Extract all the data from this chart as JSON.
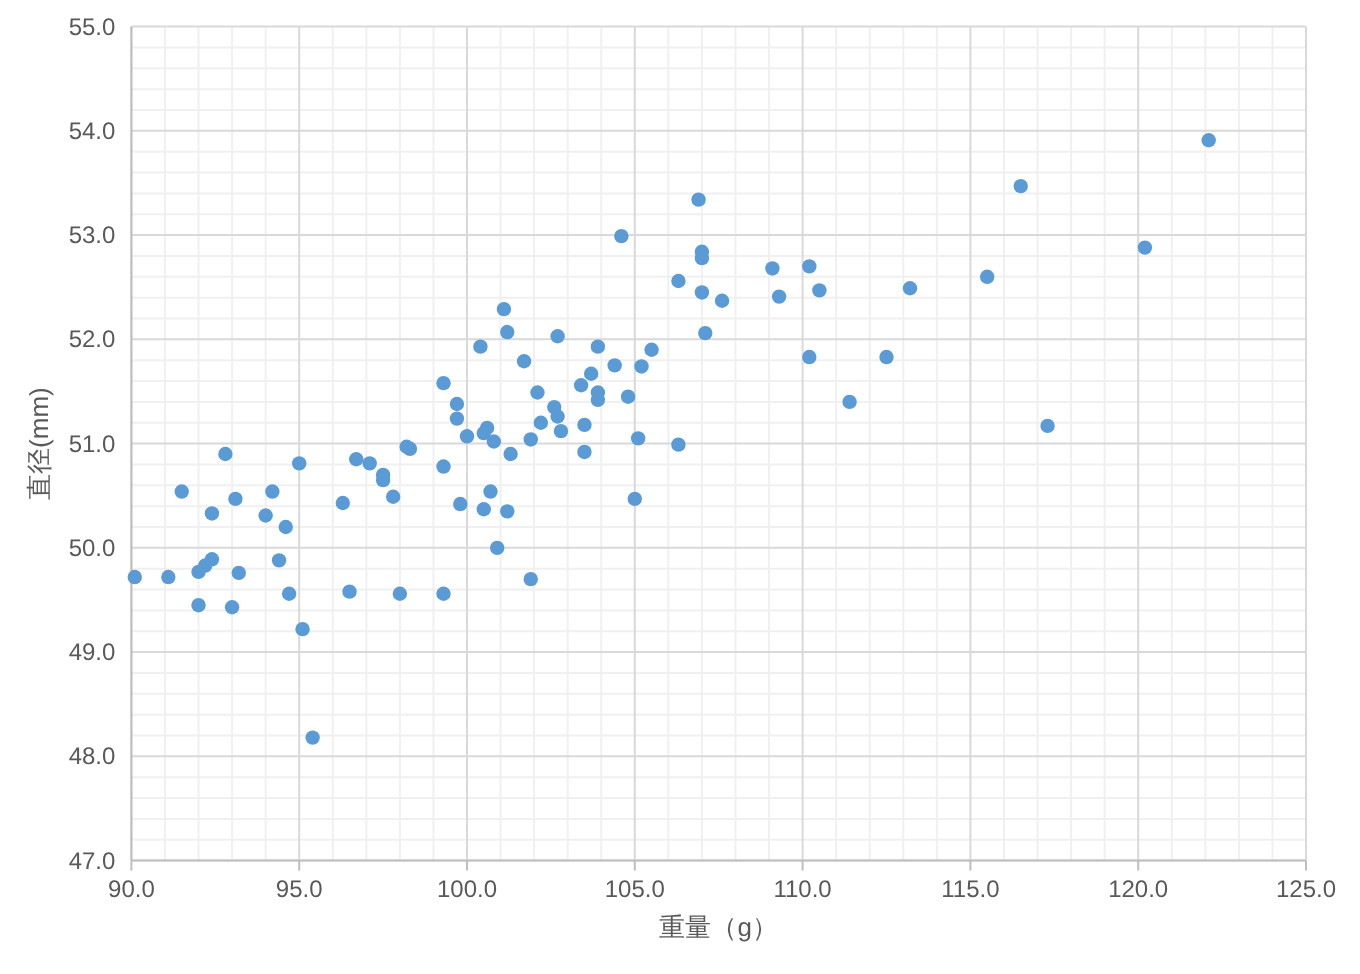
{
  "chart_data": {
    "type": "scatter",
    "xlabel": "重量（g）",
    "ylabel": "直径(mm)",
    "color": "#5b9bd5",
    "marker": "circle",
    "grid": true,
    "x": [
      90.1,
      91.1,
      91.5,
      92.8,
      92.4,
      92.0,
      92.2,
      92.4,
      92.0,
      93.0,
      93.1,
      93.2,
      94.0,
      94.2,
      94.6,
      94.4,
      94.7,
      95.0,
      95.1,
      95.4,
      96.3,
      96.5,
      96.7,
      97.1,
      97.5,
      97.5,
      97.8,
      98.2,
      98.3,
      98.0,
      99.3,
      99.3,
      99.8,
      100.0,
      100.5,
      100.7,
      100.8,
      100.9,
      101.2,
      101.3,
      101.9,
      101.9,
      103.5,
      105.1,
      106.3,
      105.0,
      106.9,
      104.6,
      107.0,
      107.0,
      106.3,
      109.1,
      110.2,
      107.0,
      107.6,
      109.3,
      110.5,
      113.2,
      107.1,
      102.7,
      101.1,
      101.2,
      101.7,
      103.9,
      104.4,
      105.5,
      105.2,
      103.7,
      103.4,
      103.9,
      103.9,
      104.8,
      102.1,
      102.6,
      102.7,
      102.2,
      102.8,
      103.5,
      110.2,
      112.5,
      111.4,
      122.1,
      116.5,
      120.2,
      115.5,
      117.3,
      100.4,
      99.3,
      99.7,
      99.7,
      100.6,
      100.5
    ],
    "values": [
      49.72,
      49.72,
      50.54,
      50.9,
      50.33,
      49.77,
      49.83,
      49.89,
      49.45,
      49.43,
      50.47,
      49.76,
      50.31,
      50.54,
      50.2,
      49.88,
      49.56,
      50.81,
      49.22,
      48.18,
      50.43,
      49.58,
      50.85,
      50.81,
      50.7,
      50.65,
      50.49,
      50.97,
      50.95,
      49.56,
      50.78,
      49.56,
      50.42,
      51.07,
      50.37,
      50.54,
      51.02,
      50.0,
      50.35,
      50.9,
      49.7,
      51.04,
      50.92,
      51.05,
      50.99,
      50.47,
      53.34,
      52.99,
      52.84,
      52.78,
      52.56,
      52.68,
      52.7,
      52.45,
      52.37,
      52.41,
      52.47,
      52.49,
      52.06,
      52.03,
      52.29,
      52.07,
      51.79,
      51.93,
      51.75,
      51.9,
      51.74,
      51.67,
      51.56,
      51.49,
      51.42,
      51.45,
      51.49,
      51.35,
      51.26,
      51.2,
      51.12,
      51.18,
      51.83,
      51.83,
      51.4,
      53.91,
      53.47,
      52.88,
      52.6,
      51.17,
      51.93,
      51.58,
      51.38,
      51.24,
      51.15,
      51.1
    ],
    "xlim": [
      90,
      125
    ],
    "xticks": [
      {
        "value": 90,
        "label": "90.0"
      },
      {
        "value": 95,
        "label": "95.0"
      },
      {
        "value": 100,
        "label": "100.0"
      },
      {
        "value": 105,
        "label": "105.0"
      },
      {
        "value": 110,
        "label": "110.0"
      },
      {
        "value": 115,
        "label": "115.0"
      },
      {
        "value": 120,
        "label": "120.0"
      },
      {
        "value": 125,
        "label": "125.0"
      }
    ],
    "ylim": [
      47,
      55
    ],
    "yticks": [
      {
        "value": 47,
        "label": "47.0"
      },
      {
        "value": 48,
        "label": "48.0"
      },
      {
        "value": 49,
        "label": "49.0"
      },
      {
        "value": 50,
        "label": "50.0"
      },
      {
        "value": 51,
        "label": "51.0"
      },
      {
        "value": 52,
        "label": "52.0"
      },
      {
        "value": 53,
        "label": "53.0"
      },
      {
        "value": 54,
        "label": "54.0"
      },
      {
        "value": 55,
        "label": "55.0"
      }
    ]
  }
}
